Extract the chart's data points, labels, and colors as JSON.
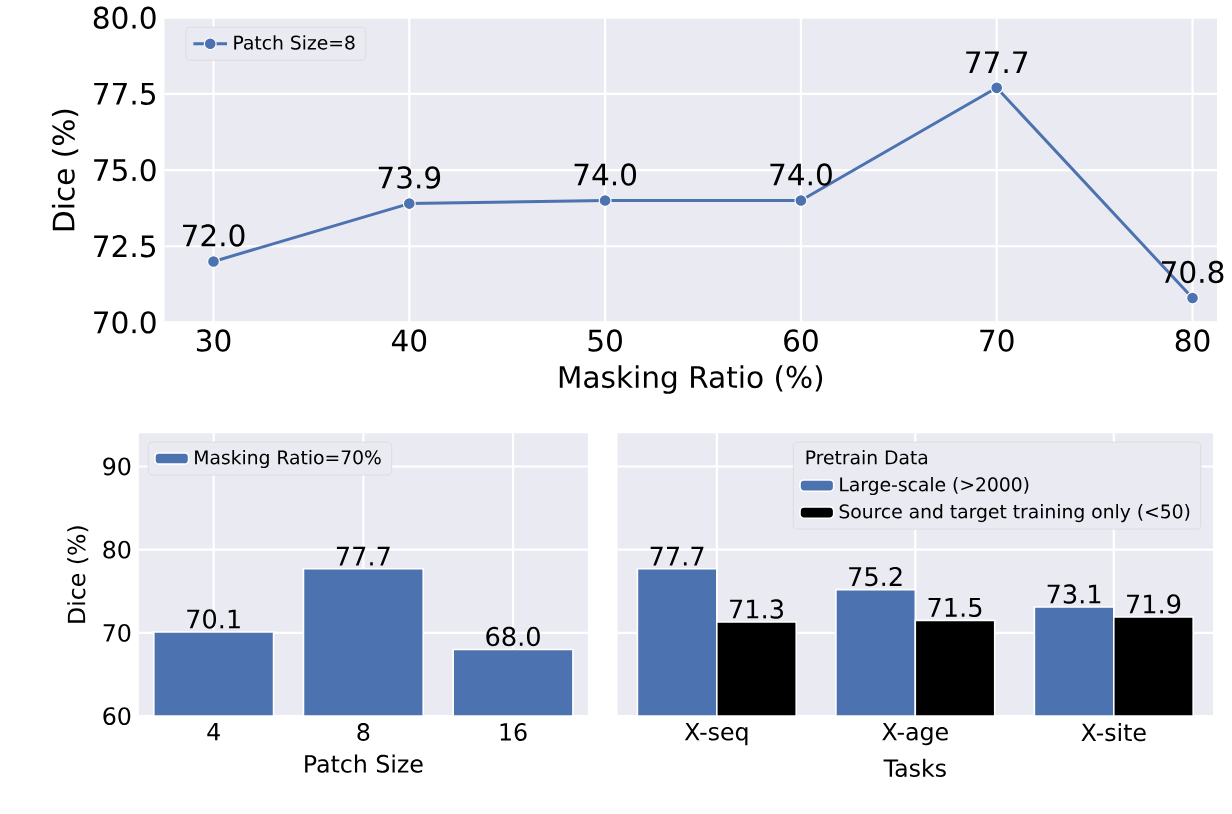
{
  "chart_data": [
    {
      "type": "line",
      "xlabel": "Masking Ratio (%)",
      "ylabel": "Dice (%)",
      "x": [
        30,
        40,
        50,
        60,
        70,
        80
      ],
      "series": [
        {
          "name": "Patch Size=8",
          "color": "#4c72b0",
          "values": [
            72.0,
            73.9,
            74.0,
            74.0,
            77.7,
            70.8
          ],
          "value_labels": [
            "72.0",
            "73.9",
            "74.0",
            "74.0",
            "77.7",
            "70.8"
          ]
        }
      ],
      "xlim": [
        27.5,
        81.25
      ],
      "ylim": [
        70,
        80
      ],
      "xticks": [
        30,
        40,
        50,
        60,
        70,
        80
      ],
      "yticks": [
        {
          "value": 70,
          "label": "70.0"
        },
        {
          "value": 72.5,
          "label": "72.5"
        },
        {
          "value": 75,
          "label": "75.0"
        },
        {
          "value": 77.5,
          "label": "77.5"
        },
        {
          "value": 80,
          "label": "80.0"
        }
      ],
      "grid": true,
      "legend": "top left",
      "marker": "circle"
    },
    {
      "type": "bar",
      "xlabel": "Patch Size",
      "ylabel": "Dice (%)",
      "categories": [
        "4",
        "8",
        "16"
      ],
      "series": [
        {
          "name": "Masking Ratio=70%",
          "color": "#4c72b0",
          "values": [
            70.1,
            77.7,
            68.0
          ],
          "value_labels": [
            "70.1",
            "77.7",
            "68.0"
          ]
        }
      ],
      "ylim": [
        60,
        94
      ],
      "yticks": [
        60,
        70,
        80,
        90
      ],
      "grid": true,
      "legend": "top left"
    },
    {
      "type": "bar",
      "xlabel": "Tasks",
      "legend_title": "Pretrain Data",
      "categories": [
        "X-seq",
        "X-age",
        "X-site"
      ],
      "series": [
        {
          "name": "Large-scale (>2000)",
          "color": "#4c72b0",
          "values": [
            77.7,
            75.2,
            73.1
          ]
        },
        {
          "name": "Source and target training only (<50)",
          "color": "#000000",
          "values": [
            71.3,
            71.5,
            71.9
          ]
        }
      ],
      "ylim": [
        60,
        94
      ],
      "yticks": [
        60,
        70,
        80,
        90
      ],
      "grid": true,
      "legend": "top right",
      "data_labels": true,
      "tick_labels": "x"
    }
  ]
}
